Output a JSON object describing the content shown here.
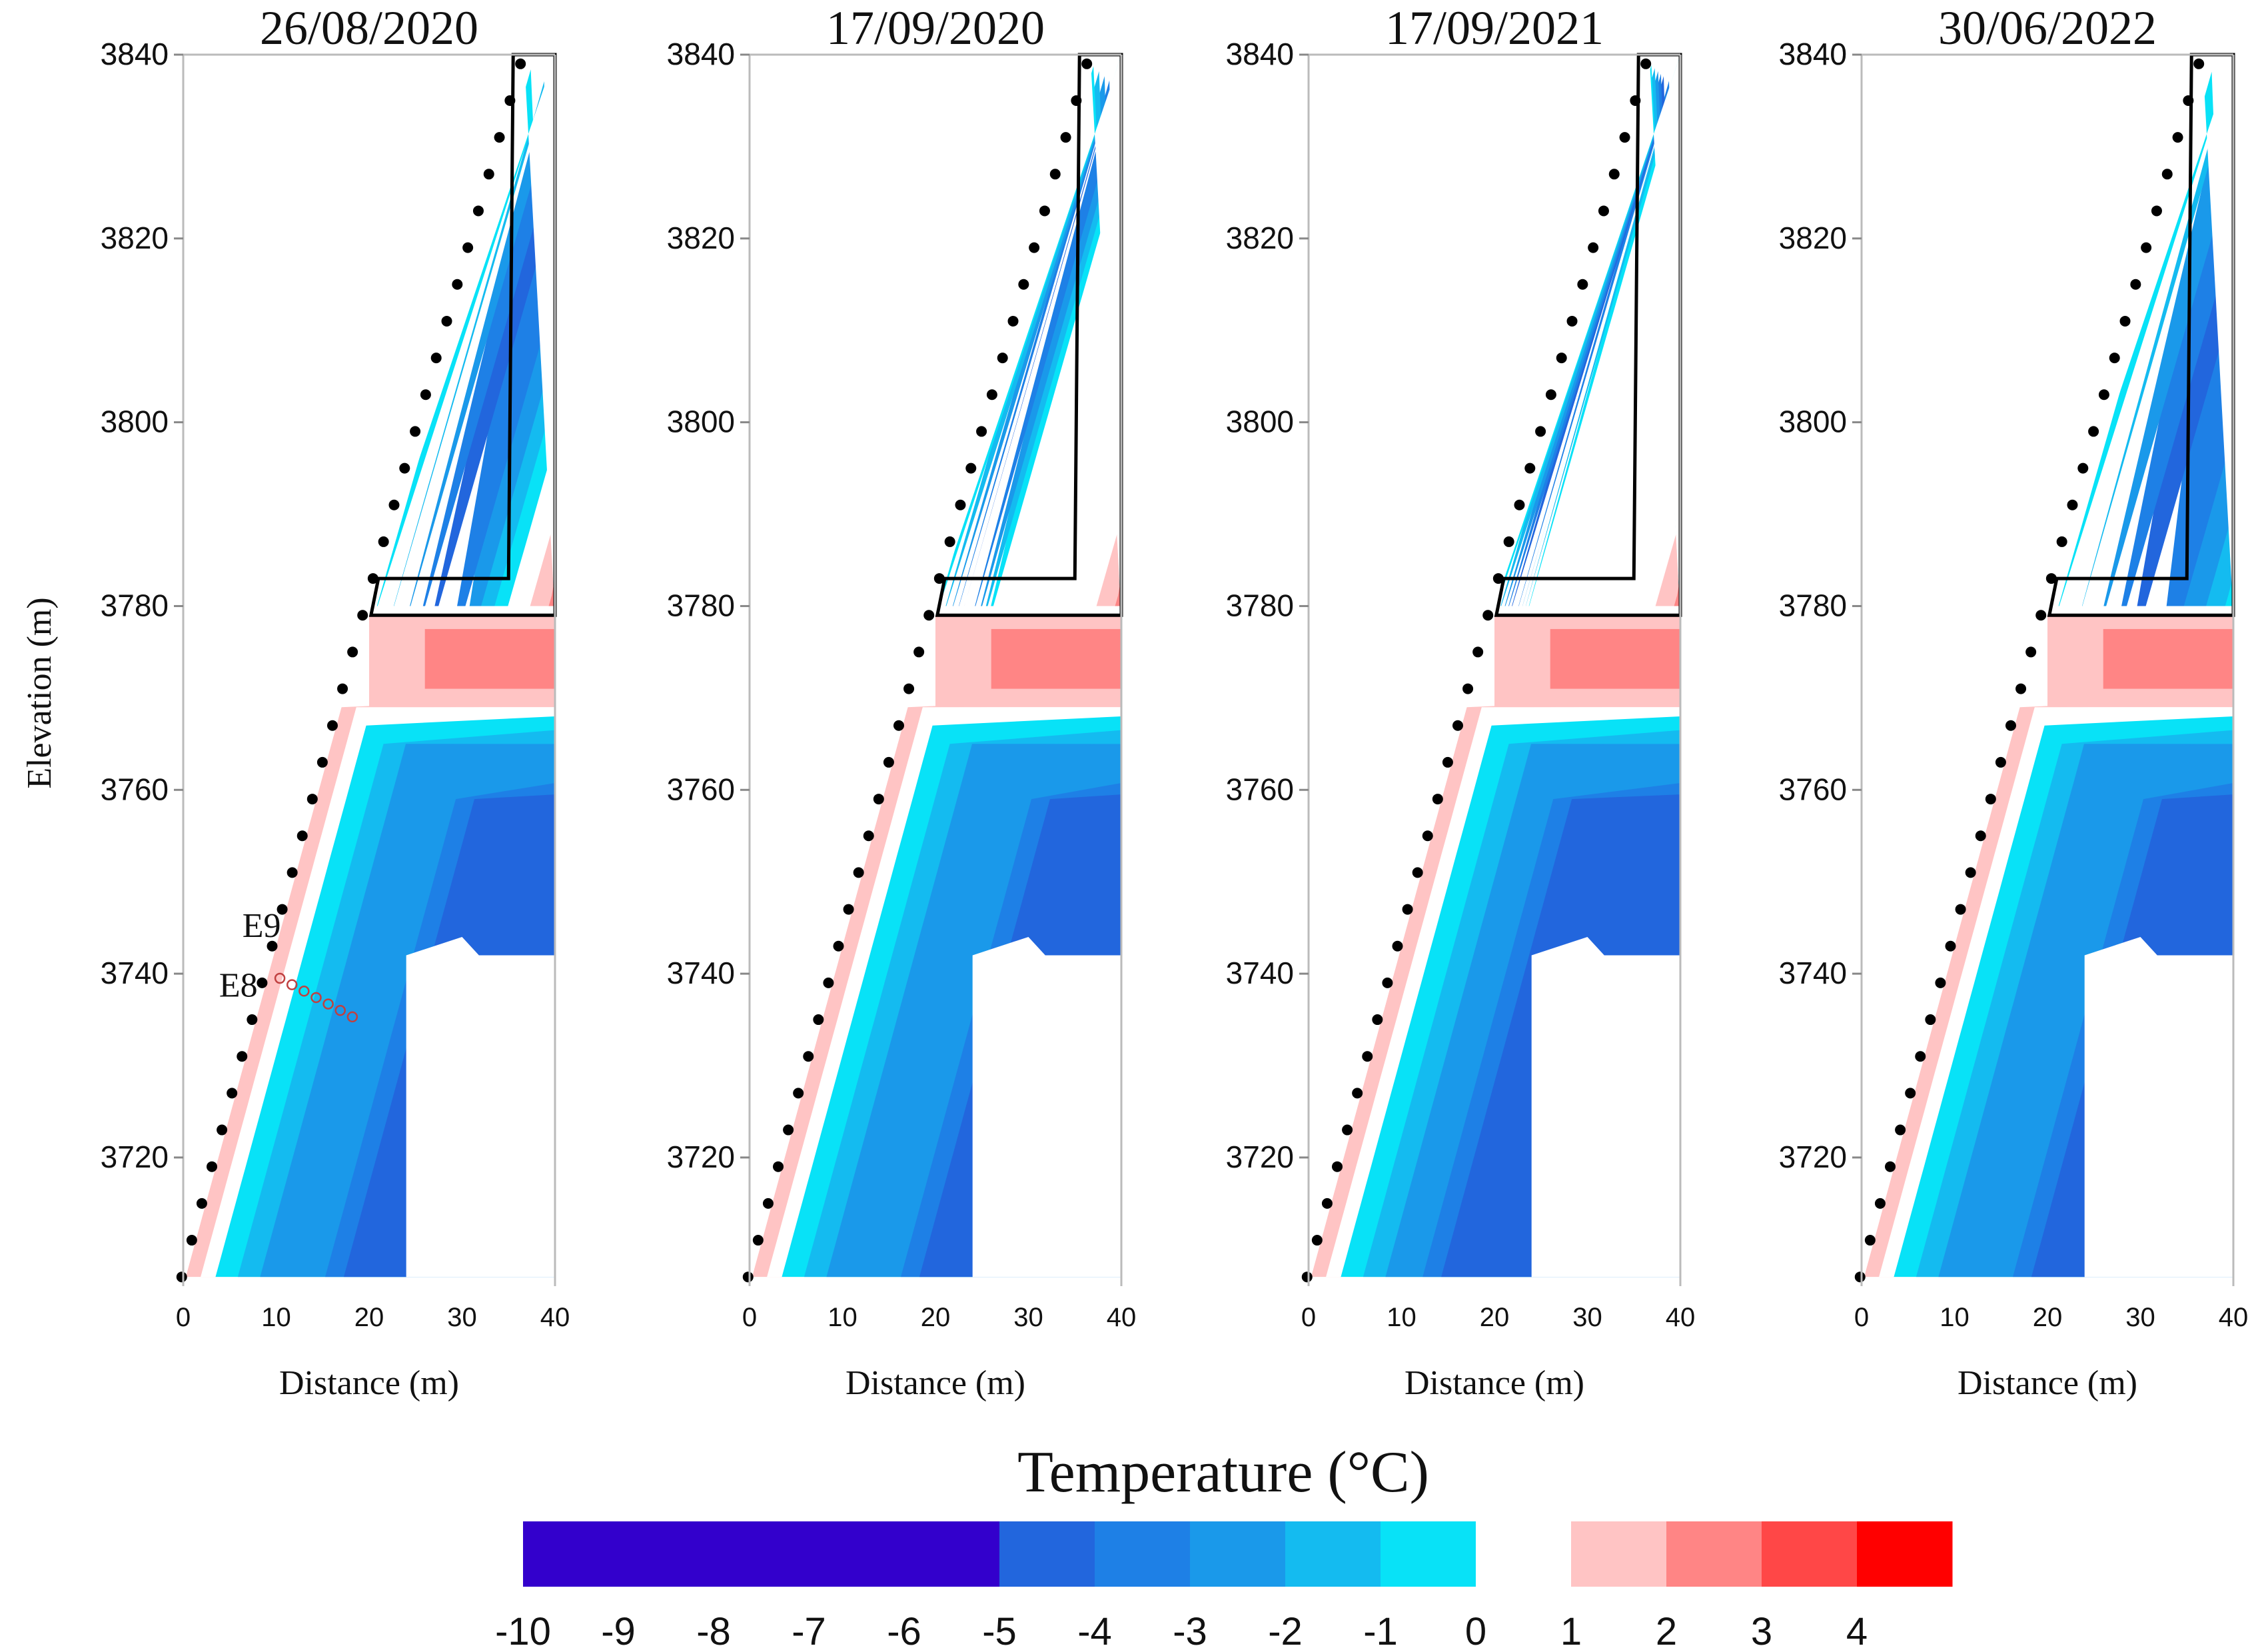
{
  "chart_data": {
    "type": "heatmap",
    "ylabel": "Elevation (m)",
    "xlabel": "Distance (m)",
    "xlim": [
      0,
      40
    ],
    "ylim": [
      3706,
      3840
    ],
    "x_ticks": [
      "0",
      "10",
      "20",
      "30",
      "40"
    ],
    "y_ticks": [
      "3720",
      "3740",
      "3760",
      "3780",
      "3800",
      "3820",
      "3840"
    ],
    "panels": [
      {
        "title": "26/08/2020",
        "annotations": [
          "E9",
          "E8"
        ]
      },
      {
        "title": "17/09/2020"
      },
      {
        "title": "17/09/2021"
      },
      {
        "title": "30/06/2022"
      }
    ],
    "colorbar": {
      "title": "Temperature (°C)",
      "ticks": [
        "-10",
        "-9",
        "-8",
        "-7",
        "-6",
        "-5",
        "-4",
        "-3",
        "-2",
        "-1",
        "0",
        "1",
        "2",
        "3",
        "4"
      ],
      "bins": [
        {
          "from": -10,
          "to": -5,
          "color": "#3300cc"
        },
        {
          "from": -5,
          "to": -4,
          "color": "#2266dd"
        },
        {
          "from": -4,
          "to": -3,
          "color": "#1e80e6"
        },
        {
          "from": -3,
          "to": -2,
          "color": "#1a99ea"
        },
        {
          "from": -2,
          "to": -1,
          "color": "#14bbf0"
        },
        {
          "from": -1,
          "to": 0,
          "color": "#08e2f7"
        },
        {
          "from": 0,
          "to": 1,
          "color": "#ffffff"
        },
        {
          "from": 1,
          "to": 2,
          "color": "#ffc4c4"
        },
        {
          "from": 2,
          "to": 3,
          "color": "#ff8585"
        },
        {
          "from": 3,
          "to": 4,
          "color": "#ff4747"
        },
        {
          "from": 4,
          "to": 5,
          "color": "#ff0000"
        }
      ]
    }
  }
}
